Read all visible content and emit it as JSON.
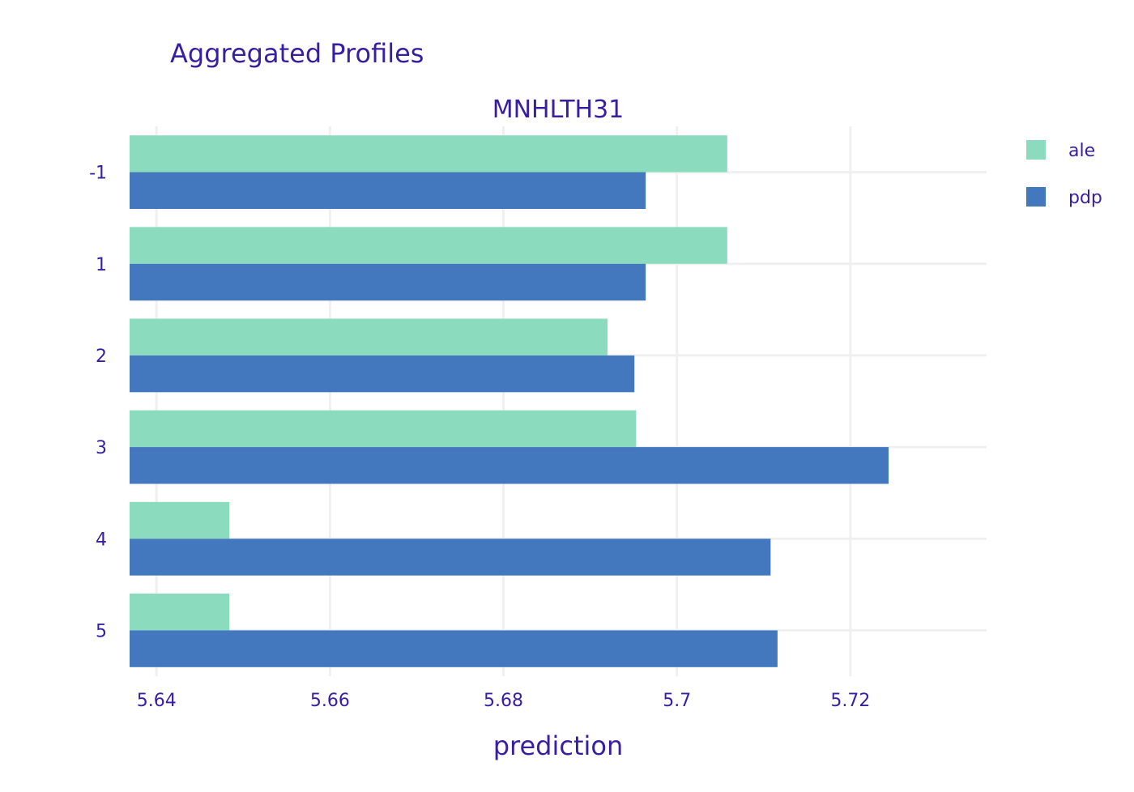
{
  "chart_data": {
    "type": "bar",
    "orientation": "horizontal",
    "title": "Aggregated Profiles",
    "subtitle": "MNHLTH31",
    "xlabel": "prediction",
    "ylabel": "",
    "categories": [
      "-1",
      "1",
      "2",
      "3",
      "4",
      "5"
    ],
    "series": [
      {
        "name": "ale",
        "color": "#8bdcbe",
        "values": [
          5.7058,
          5.7058,
          5.692,
          5.6953,
          5.6484,
          5.6484
        ]
      },
      {
        "name": "pdp",
        "color": "#4378bf",
        "values": [
          5.6964,
          5.6964,
          5.6951,
          5.7244,
          5.7108,
          5.7116
        ]
      }
    ],
    "xlim": [
      5.6369,
      5.7357
    ],
    "xticks": [
      5.64,
      5.66,
      5.68,
      5.7,
      5.72
    ],
    "xtick_labels": [
      "5.64",
      "5.66",
      "5.68",
      "5.7",
      "5.72"
    ],
    "grid": true,
    "legend_position": "top-right"
  }
}
